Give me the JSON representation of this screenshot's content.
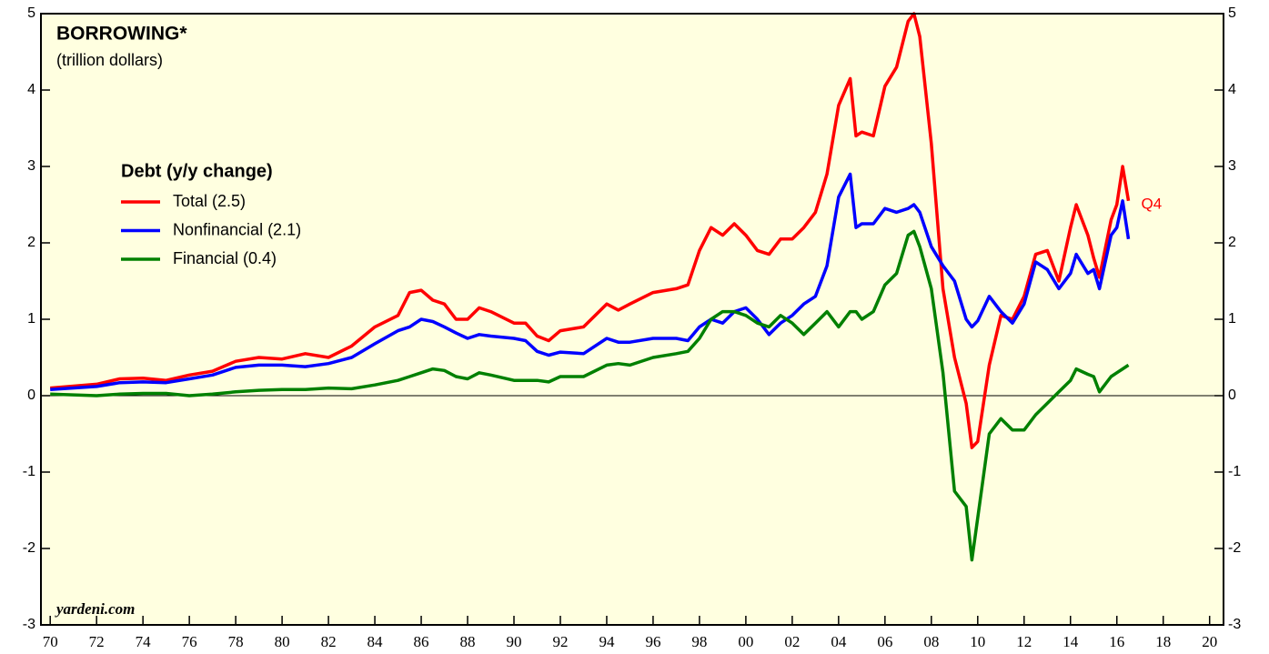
{
  "chart_data": {
    "type": "line",
    "title": "BORROWING*",
    "subtitle": "(trillion dollars)",
    "legend_title": "Debt (y/y change)",
    "annotation": "Q4",
    "source": "yardeni.com",
    "xlim": [
      1969.6,
      2020.6
    ],
    "ylim": [
      -3,
      5
    ],
    "yticks": [
      -3,
      -2,
      -1,
      0,
      1,
      2,
      3,
      4,
      5
    ],
    "xticks": [
      {
        "value": 1970,
        "label": "70"
      },
      {
        "value": 1972,
        "label": "72"
      },
      {
        "value": 1974,
        "label": "74"
      },
      {
        "value": 1976,
        "label": "76"
      },
      {
        "value": 1978,
        "label": "78"
      },
      {
        "value": 1980,
        "label": "80"
      },
      {
        "value": 1982,
        "label": "82"
      },
      {
        "value": 1984,
        "label": "84"
      },
      {
        "value": 1986,
        "label": "86"
      },
      {
        "value": 1988,
        "label": "88"
      },
      {
        "value": 1990,
        "label": "90"
      },
      {
        "value": 1992,
        "label": "92"
      },
      {
        "value": 1994,
        "label": "94"
      },
      {
        "value": 1996,
        "label": "96"
      },
      {
        "value": 1998,
        "label": "98"
      },
      {
        "value": 2000,
        "label": "00"
      },
      {
        "value": 2002,
        "label": "02"
      },
      {
        "value": 2004,
        "label": "04"
      },
      {
        "value": 2006,
        "label": "06"
      },
      {
        "value": 2008,
        "label": "08"
      },
      {
        "value": 2010,
        "label": "10"
      },
      {
        "value": 2012,
        "label": "12"
      },
      {
        "value": 2014,
        "label": "14"
      },
      {
        "value": 2016,
        "label": "16"
      },
      {
        "value": 2018,
        "label": "18"
      },
      {
        "value": 2020,
        "label": "20"
      }
    ],
    "x": [
      1970,
      1972,
      1973,
      1974,
      1975,
      1976,
      1977,
      1978,
      1979,
      1980,
      1981,
      1982,
      1983,
      1984,
      1985,
      1985.5,
      1986,
      1986.5,
      1987,
      1987.5,
      1988,
      1988.5,
      1989,
      1990,
      1990.5,
      1991,
      1991.5,
      1992,
      1993,
      1994,
      1994.5,
      1995,
      1996,
      1997,
      1997.5,
      1998,
      1998.5,
      1999,
      1999.5,
      2000,
      2000.5,
      2001,
      2001.5,
      2002,
      2002.5,
      2003,
      2003.5,
      2004,
      2004.5,
      2004.75,
      2005,
      2005.5,
      2006,
      2006.5,
      2007,
      2007.25,
      2007.5,
      2008,
      2008.5,
      2009,
      2009.5,
      2009.75,
      2010,
      2010.5,
      2011,
      2011.5,
      2012,
      2012.5,
      2013,
      2013.5,
      2014,
      2014.25,
      2014.75,
      2015,
      2015.25,
      2015.75,
      2016,
      2016.25,
      2016.5
    ],
    "series": [
      {
        "name": "Total (2.5)",
        "color": "#ff0000",
        "values": [
          0.1,
          0.15,
          0.22,
          0.23,
          0.2,
          0.27,
          0.32,
          0.45,
          0.5,
          0.48,
          0.55,
          0.5,
          0.65,
          0.9,
          1.05,
          1.35,
          1.38,
          1.25,
          1.2,
          1.0,
          1.0,
          1.15,
          1.1,
          0.95,
          0.95,
          0.78,
          0.72,
          0.85,
          0.9,
          1.2,
          1.12,
          1.2,
          1.35,
          1.4,
          1.45,
          1.9,
          2.2,
          2.1,
          2.25,
          2.1,
          1.9,
          1.85,
          2.05,
          2.05,
          2.2,
          2.4,
          2.9,
          3.8,
          4.15,
          3.4,
          3.45,
          3.4,
          4.05,
          4.3,
          4.9,
          5.0,
          4.7,
          3.3,
          1.4,
          0.5,
          -0.1,
          -0.68,
          -0.6,
          0.4,
          1.05,
          1.0,
          1.3,
          1.85,
          1.9,
          1.5,
          2.2,
          2.5,
          2.1,
          1.8,
          1.55,
          2.3,
          2.5,
          3.0,
          2.55
        ]
      },
      {
        "name": "Nonfinancial (2.1)",
        "color": "#0000ff",
        "values": [
          0.08,
          0.12,
          0.17,
          0.18,
          0.17,
          0.22,
          0.27,
          0.37,
          0.4,
          0.4,
          0.38,
          0.42,
          0.5,
          0.68,
          0.85,
          0.9,
          1.0,
          0.97,
          0.9,
          0.82,
          0.75,
          0.8,
          0.78,
          0.75,
          0.72,
          0.58,
          0.53,
          0.57,
          0.55,
          0.75,
          0.7,
          0.7,
          0.75,
          0.75,
          0.72,
          0.9,
          1.0,
          0.95,
          1.1,
          1.15,
          1.0,
          0.8,
          0.95,
          1.05,
          1.2,
          1.3,
          1.7,
          2.6,
          2.9,
          2.2,
          2.25,
          2.25,
          2.45,
          2.4,
          2.45,
          2.5,
          2.4,
          1.95,
          1.7,
          1.5,
          1.0,
          0.9,
          0.98,
          1.3,
          1.1,
          0.95,
          1.2,
          1.75,
          1.65,
          1.4,
          1.6,
          1.85,
          1.6,
          1.65,
          1.4,
          2.1,
          2.2,
          2.55,
          2.05
        ]
      },
      {
        "name": "Financial (0.4)",
        "color": "#008000",
        "values": [
          0.02,
          0.0,
          0.02,
          0.03,
          0.03,
          0.0,
          0.02,
          0.05,
          0.07,
          0.08,
          0.08,
          0.1,
          0.09,
          0.14,
          0.2,
          0.25,
          0.3,
          0.35,
          0.33,
          0.25,
          0.22,
          0.3,
          0.27,
          0.2,
          0.2,
          0.2,
          0.18,
          0.25,
          0.25,
          0.4,
          0.42,
          0.4,
          0.5,
          0.55,
          0.58,
          0.75,
          1.0,
          1.1,
          1.1,
          1.05,
          0.95,
          0.9,
          1.05,
          0.95,
          0.8,
          0.95,
          1.1,
          0.9,
          1.1,
          1.1,
          1.0,
          1.1,
          1.45,
          1.6,
          2.1,
          2.15,
          1.95,
          1.4,
          0.3,
          -1.25,
          -1.45,
          -2.15,
          -1.6,
          -0.5,
          -0.3,
          -0.45,
          -0.45,
          -0.25,
          -0.1,
          0.05,
          0.2,
          0.35,
          0.28,
          0.25,
          0.05,
          0.25,
          0.3,
          0.35,
          0.4
        ]
      }
    ]
  }
}
